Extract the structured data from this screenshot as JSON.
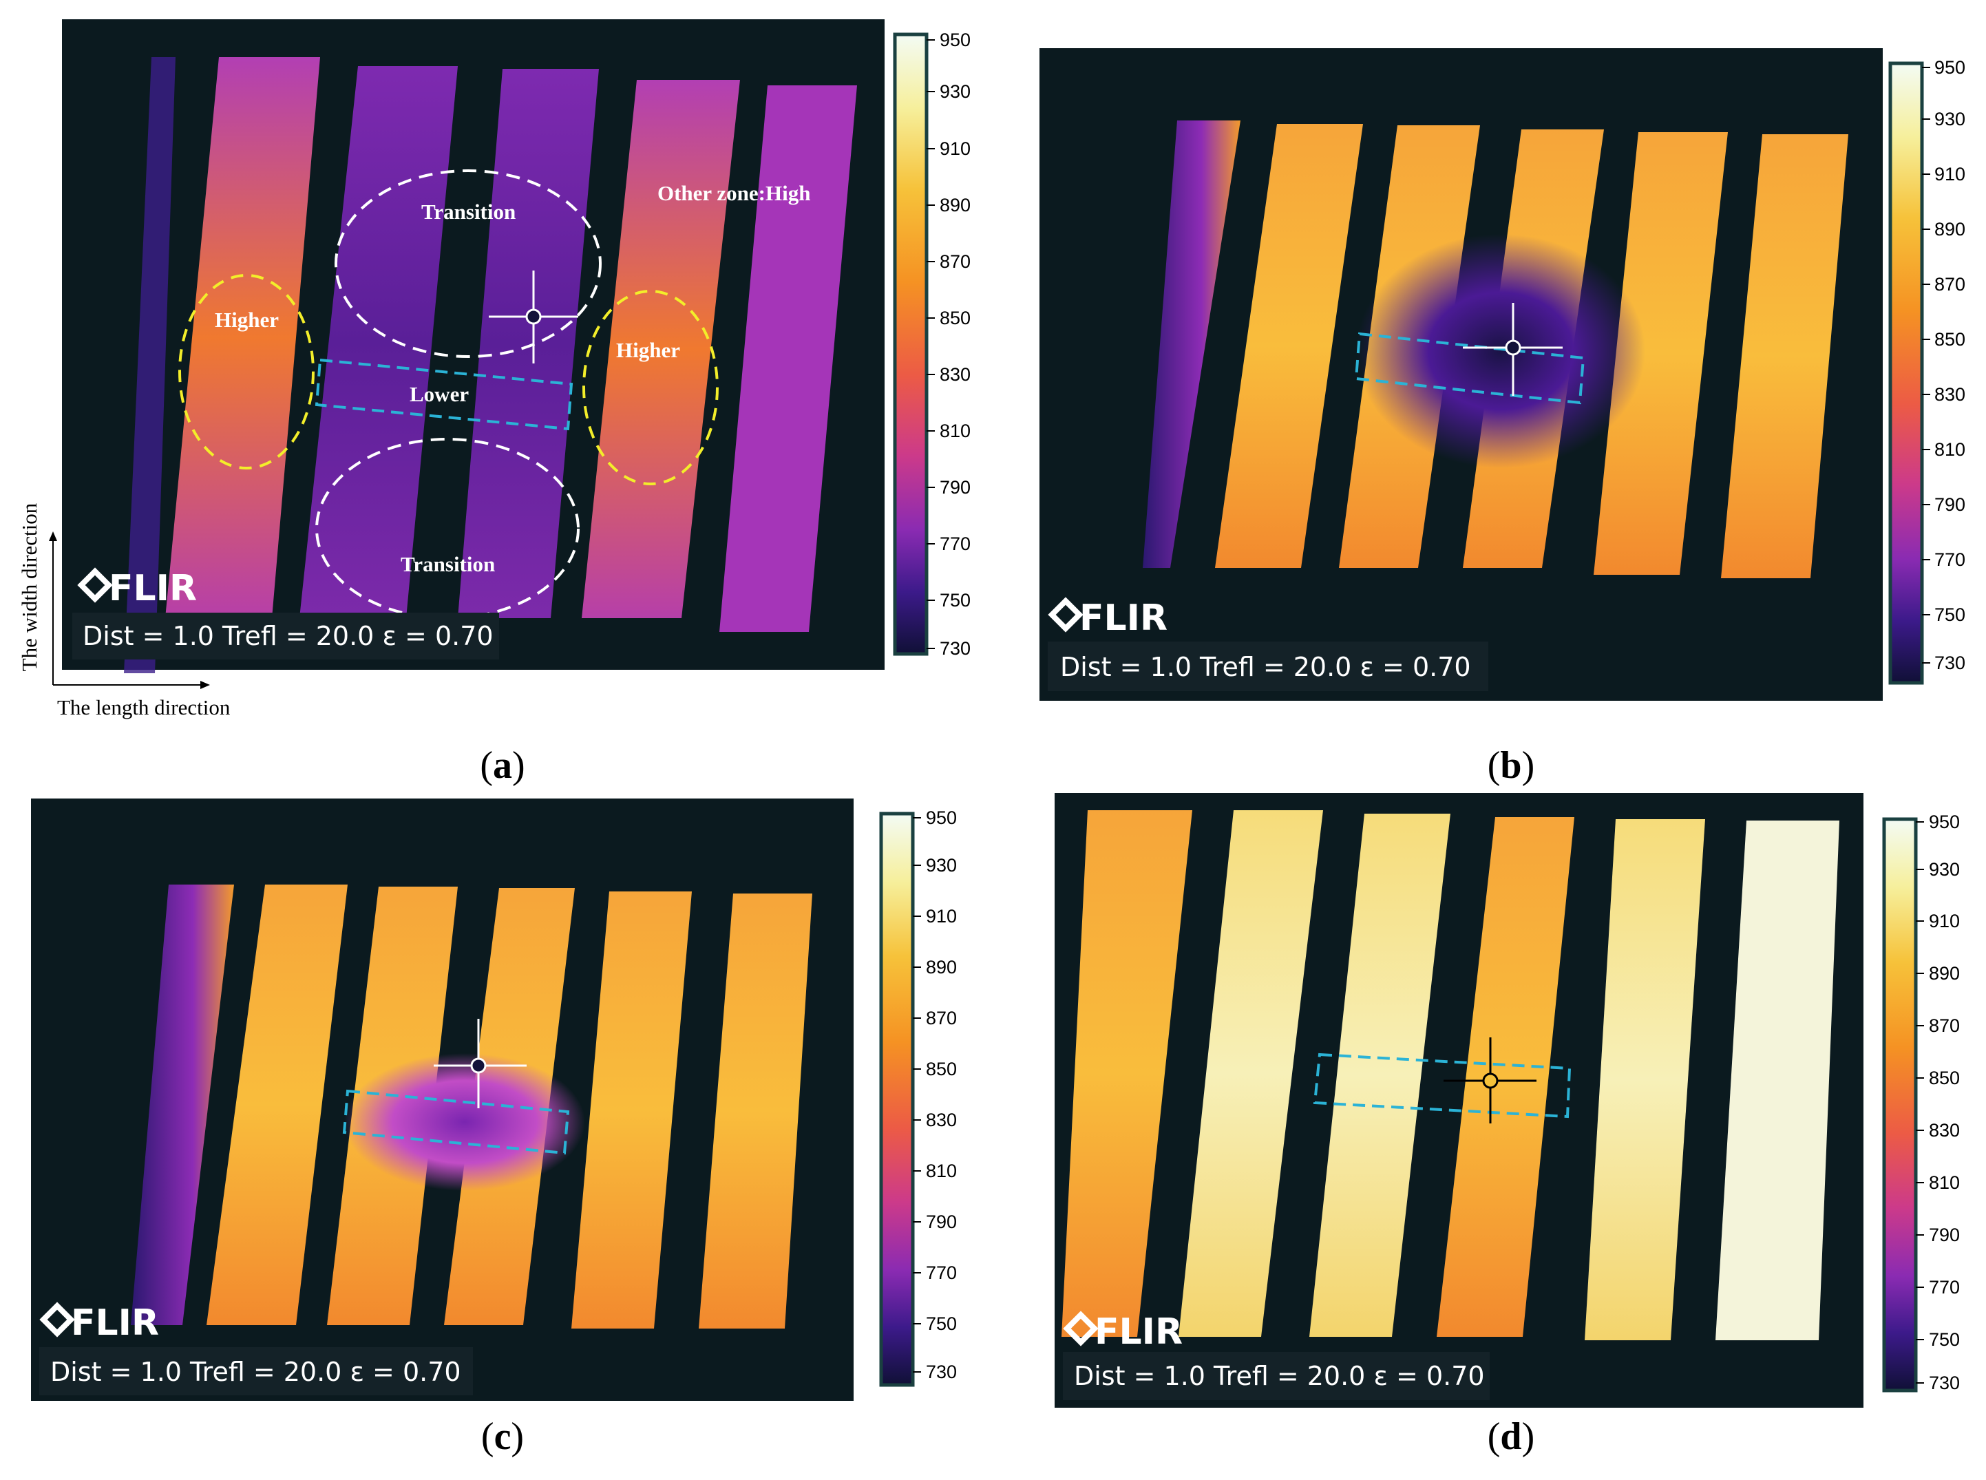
{
  "panels": [
    {
      "id": "a",
      "caption_letter": "a",
      "info": "Dist = 1.0  Trefl = 20.0  ε = 0.70",
      "logo": "FLIR",
      "scale": [
        "950",
        "930",
        "910",
        "890",
        "870",
        "850",
        "830",
        "810",
        "790",
        "770",
        "750",
        "730"
      ]
    },
    {
      "id": "b",
      "caption_letter": "b",
      "info": "Dist = 1.0  Trefl = 20.0  ε = 0.70",
      "logo": "FLIR",
      "scale": [
        "950",
        "930",
        "910",
        "890",
        "870",
        "850",
        "830",
        "810",
        "790",
        "770",
        "750",
        "730"
      ]
    },
    {
      "id": "c",
      "caption_letter": "c",
      "info": "Dist = 1.0  Trefl = 20.0  ε = 0.70",
      "logo": "FLIR",
      "scale": [
        "950",
        "930",
        "910",
        "890",
        "870",
        "850",
        "830",
        "810",
        "790",
        "770",
        "750",
        "730"
      ]
    },
    {
      "id": "d",
      "caption_letter": "d",
      "info": "Dist = 1.0  Trefl = 20.0  ε = 0.70",
      "logo": "FLIR",
      "scale": [
        "950",
        "930",
        "910",
        "890",
        "870",
        "850",
        "830",
        "810",
        "790",
        "770",
        "750",
        "730"
      ]
    }
  ],
  "annotations_a": {
    "transition_top": "Transition",
    "transition_bottom": "Transition",
    "higher_left": "Higher",
    "higher_right": "Higher",
    "lower": "Lower",
    "other_zone": "Other zone:High"
  },
  "axes": {
    "width_direction": "The width direction",
    "length_direction": "The length direction"
  },
  "colors": {
    "background": "#0b1a1f",
    "hot": "#fbe07a",
    "warm": "#f39a2c",
    "mid": "#c64dc4",
    "cool": "#5a1fa0",
    "cold": "#13123a",
    "dashed_cyan": "#2bb3d6",
    "dashed_yellow": "#f3ee2a",
    "dashed_white": "#ffffff"
  }
}
